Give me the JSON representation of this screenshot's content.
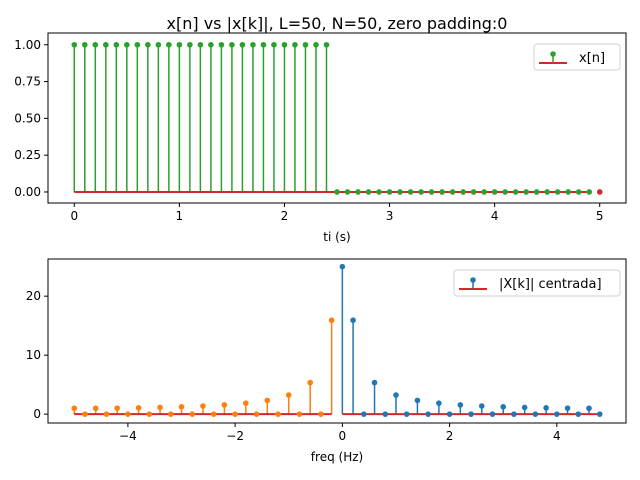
{
  "chart_data": [
    {
      "type": "stem",
      "title": "x[n] vs |x[k]|, L=50, N=50, zero padding:0",
      "xlabel": "ti (s)",
      "ylabel": "",
      "xlim": [
        -0.25,
        5.25
      ],
      "ylim": [
        -0.075,
        1.08
      ],
      "xticks": [
        0,
        1,
        2,
        3,
        4,
        5
      ],
      "xtick_labels": [
        "0",
        "1",
        "2",
        "3",
        "4",
        "5"
      ],
      "yticks": [
        0,
        0.25,
        0.5,
        0.75,
        1.0
      ],
      "ytick_labels": [
        "0.00",
        "0.25",
        "0.50",
        "0.75",
        "1.00"
      ],
      "legend": {
        "label": "x[n]",
        "placement": "top-right"
      },
      "series": [
        {
          "name": "x[n]",
          "color": "#2ca02c",
          "baseline_color": "#d62728",
          "x": [
            0,
            0.1,
            0.2,
            0.3,
            0.4,
            0.5,
            0.6,
            0.7,
            0.8,
            0.9,
            1.0,
            1.1,
            1.2,
            1.3,
            1.4,
            1.5,
            1.6,
            1.7,
            1.8,
            1.9,
            2.0,
            2.1,
            2.2,
            2.3,
            2.4,
            2.5,
            2.6,
            2.7,
            2.8,
            2.9,
            3.0,
            3.1,
            3.2,
            3.3,
            3.4,
            3.5,
            3.6,
            3.7,
            3.8,
            3.9,
            4.0,
            4.1,
            4.2,
            4.3,
            4.4,
            4.5,
            4.6,
            4.7,
            4.8,
            4.9
          ],
          "y": [
            1,
            1,
            1,
            1,
            1,
            1,
            1,
            1,
            1,
            1,
            1,
            1,
            1,
            1,
            1,
            1,
            1,
            1,
            1,
            1,
            1,
            1,
            1,
            1,
            1,
            0,
            0,
            0,
            0,
            0,
            0,
            0,
            0,
            0,
            0,
            0,
            0,
            0,
            0,
            0,
            0,
            0,
            0,
            0,
            0,
            0,
            0,
            0,
            0,
            0
          ]
        },
        {
          "name": "end",
          "color": "#d62728",
          "baseline_color": null,
          "x": [
            5.0
          ],
          "y": [
            0
          ]
        }
      ]
    },
    {
      "type": "stem",
      "title": "",
      "xlabel": "freq (Hz)",
      "ylabel": "",
      "xlim": [
        -5.49,
        5.29
      ],
      "ylim": [
        -1.5,
        26.3
      ],
      "xticks": [
        -4,
        -2,
        0,
        2,
        4
      ],
      "xtick_labels": [
        "−4",
        "−2",
        "0",
        "2",
        "4"
      ],
      "yticks": [
        0,
        10,
        20
      ],
      "ytick_labels": [
        "0",
        "10",
        "20"
      ],
      "legend": {
        "label": "|X[k]| centrada]",
        "placement": "top-right"
      },
      "series": [
        {
          "name": "negative",
          "color": "#ff7f0e",
          "baseline_color": "#d62728",
          "x": [
            -5.0,
            -4.8,
            -4.6,
            -4.4,
            -4.2,
            -4.0,
            -3.8,
            -3.6,
            -3.4,
            -3.2,
            -3.0,
            -2.8,
            -2.6,
            -2.4,
            -2.2,
            -2.0,
            -1.8,
            -1.6,
            -1.4,
            -1.2,
            -1.0,
            -0.8,
            -0.6,
            -0.4,
            -0.2
          ],
          "y": [
            1.0,
            0,
            1.0,
            0,
            1.02,
            0,
            1.07,
            0,
            1.14,
            0,
            1.24,
            0,
            1.38,
            0,
            1.57,
            0,
            1.86,
            0,
            2.33,
            0,
            3.24,
            0,
            5.35,
            0,
            15.92
          ]
        },
        {
          "name": "|X[k]| centrada]",
          "color": "#1f77b4",
          "baseline_color": "#d62728",
          "x": [
            0,
            0.2,
            0.4,
            0.6,
            0.8,
            1.0,
            1.2,
            1.4,
            1.6,
            1.8,
            2.0,
            2.2,
            2.4,
            2.6,
            2.8,
            3.0,
            3.2,
            3.4,
            3.6,
            3.8,
            4.0,
            4.2,
            4.4,
            4.6,
            4.8
          ],
          "y": [
            25,
            15.92,
            0,
            5.35,
            0,
            3.24,
            0,
            2.33,
            0,
            1.86,
            0,
            1.57,
            0,
            1.38,
            0,
            1.24,
            0,
            1.14,
            0,
            1.07,
            0,
            1.02,
            0,
            1.0,
            0
          ]
        }
      ]
    }
  ]
}
